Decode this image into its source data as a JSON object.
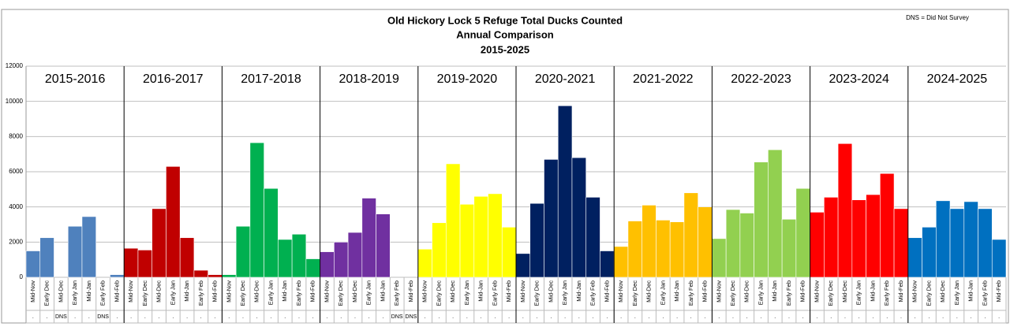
{
  "chart_data": {
    "type": "bar",
    "title": "Old Hickory Lock 5 Refuge Total Ducks Counted",
    "subtitle": "Annual Comparison",
    "years": "2015-2025",
    "note": "DNS = Did Not Survey",
    "categories": [
      "Mid-Nov",
      "Early Dec",
      "Mid-Dec",
      "Early Jan",
      "Mid-Jan",
      "Early Feb",
      "Mid-Feb"
    ],
    "ylim": [
      0,
      12000
    ],
    "yticks": [
      0,
      2000,
      4000,
      6000,
      8000,
      10000,
      12000
    ],
    "grid": true,
    "series": [
      {
        "name": "2015-2016",
        "color": "#4f81bd",
        "values": [
          1500,
          2250,
          null,
          2900,
          3450,
          null,
          150
        ],
        "notes": [
          ".",
          ".",
          "DNS",
          ".",
          ".",
          "DNS",
          "."
        ]
      },
      {
        "name": "2016-2017",
        "color": "#c00000",
        "values": [
          1650,
          1550,
          3900,
          6300,
          2250,
          400,
          150
        ],
        "notes": [
          ".",
          ".",
          ".",
          ".",
          ".",
          ".",
          "."
        ]
      },
      {
        "name": "2017-2018",
        "color": "#00b050",
        "values": [
          150,
          2900,
          7650,
          5050,
          2150,
          2450,
          1050
        ],
        "notes": [
          ".",
          ".",
          ".",
          ".",
          ".",
          ".",
          "."
        ]
      },
      {
        "name": "2018-2019",
        "color": "#7030a0",
        "values": [
          1450,
          2000,
          2550,
          4500,
          3600,
          null,
          null
        ],
        "notes": [
          ".",
          ".",
          ".",
          ".",
          ".",
          "DNS",
          "DNS"
        ]
      },
      {
        "name": "2019-2020",
        "color": "#ffff00",
        "values": [
          1600,
          3100,
          6450,
          4150,
          4600,
          4750,
          2850
        ],
        "notes": [
          ".",
          ".",
          ".",
          ".",
          ".",
          ".",
          "."
        ]
      },
      {
        "name": "2020-2021",
        "color": "#002060",
        "values": [
          1350,
          4200,
          6700,
          9750,
          6800,
          4550,
          1500
        ],
        "notes": [
          ".",
          ".",
          ".",
          ".",
          ".",
          ".",
          "."
        ]
      },
      {
        "name": "2021-2022",
        "color": "#ffc000",
        "values": [
          1750,
          3200,
          4100,
          3250,
          3150,
          4800,
          4000
        ],
        "notes": [
          ".",
          ".",
          ".",
          ".",
          ".",
          ".",
          "."
        ]
      },
      {
        "name": "2022-2023",
        "color": "#92d050",
        "values": [
          2200,
          3850,
          3650,
          6550,
          7250,
          3300,
          5050
        ],
        "notes": [
          ".",
          ".",
          ".",
          ".",
          ".",
          ".",
          "."
        ]
      },
      {
        "name": "2023-2024",
        "color": "#ff0000",
        "values": [
          3700,
          4550,
          7600,
          4400,
          4700,
          5900,
          3900
        ],
        "notes": [
          ".",
          ".",
          ".",
          ".",
          ".",
          ".",
          "."
        ]
      },
      {
        "name": "2024-2025",
        "color": "#0070c0",
        "values": [
          2250,
          2850,
          4350,
          3900,
          4300,
          3900,
          2150
        ],
        "notes": [
          ".",
          ".",
          ".",
          ".",
          ".",
          ".",
          "."
        ]
      }
    ]
  }
}
